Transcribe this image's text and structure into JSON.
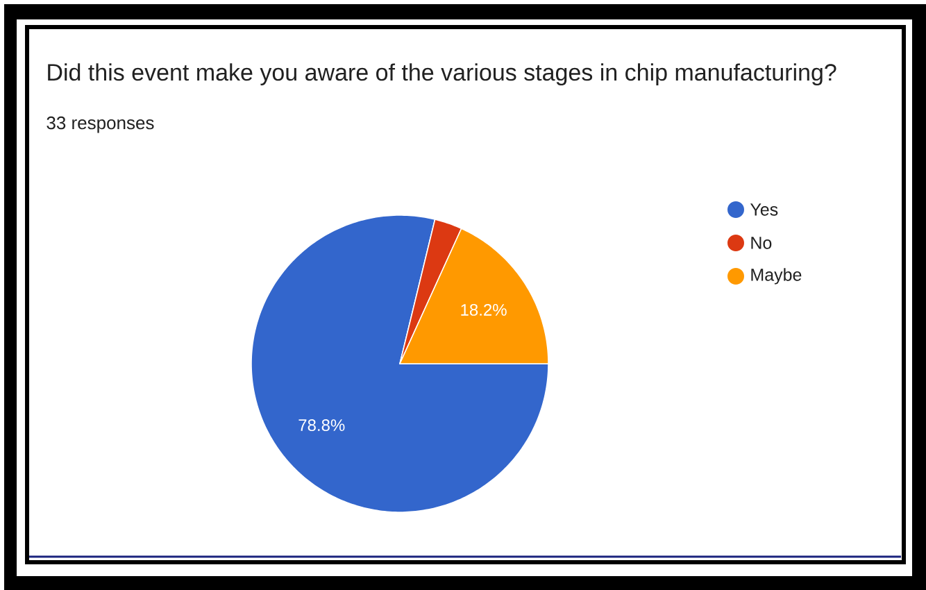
{
  "chart_data": {
    "type": "pie",
    "title": "Did this event make you aware of the various stages in chip manufacturing?",
    "subtitle": "33 responses",
    "categories": [
      "Yes",
      "No",
      "Maybe"
    ],
    "values": [
      78.8,
      3.0,
      18.2
    ],
    "colors": [
      "#3366cc",
      "#dc3912",
      "#ff9900"
    ],
    "value_labels": [
      "78.8%",
      null,
      "18.2%"
    ],
    "legend": "right"
  }
}
